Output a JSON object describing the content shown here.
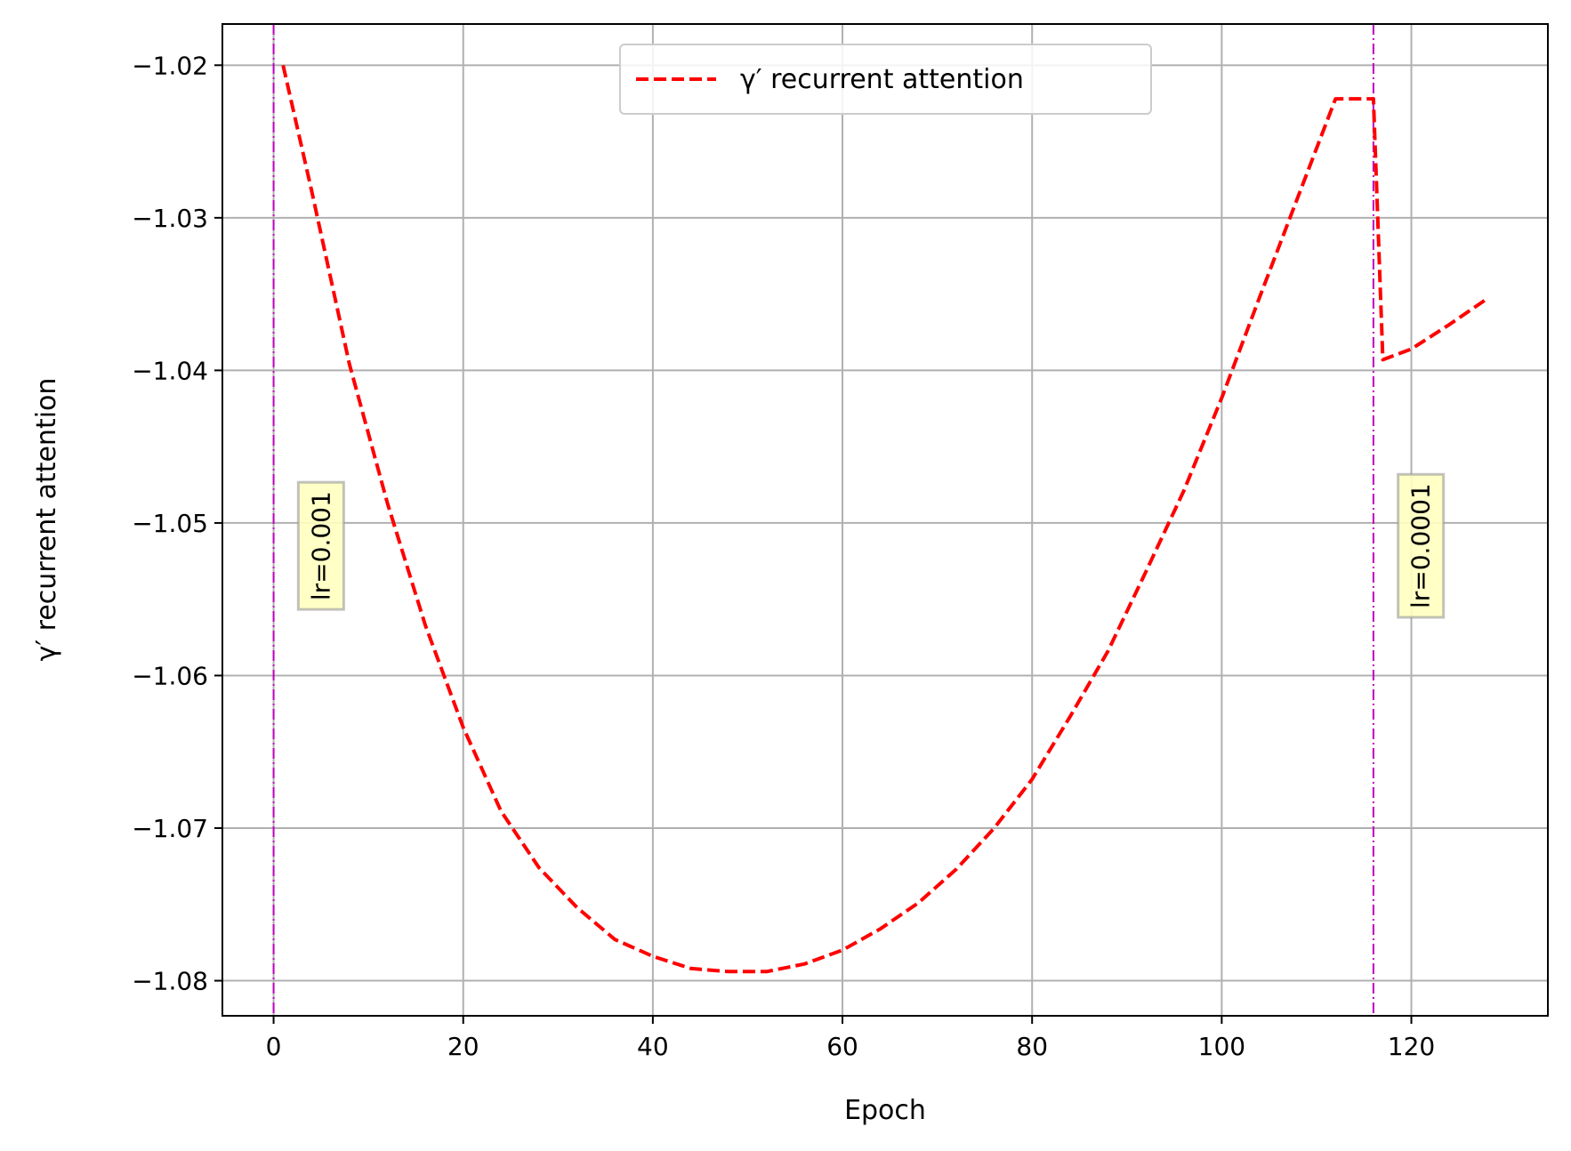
{
  "chart_data": {
    "type": "line",
    "title": "",
    "xlabel": "Epoch",
    "ylabel": "γ′ recurrent attention",
    "xlim": [
      -5.4,
      134.4
    ],
    "ylim": [
      -1.0823,
      -1.0173
    ],
    "xticks": [
      0,
      20,
      40,
      60,
      80,
      100,
      120
    ],
    "xtick_labels": [
      "0",
      "20",
      "40",
      "60",
      "80",
      "100",
      "120"
    ],
    "yticks": [
      -1.02,
      -1.03,
      -1.04,
      -1.05,
      -1.06,
      -1.07,
      -1.08
    ],
    "ytick_labels": [
      "−1.02",
      "−1.03",
      "−1.04",
      "−1.05",
      "−1.06",
      "−1.07",
      "−1.08"
    ],
    "grid": true,
    "legend_position": "top-center",
    "colors": {
      "series": "#ff0000",
      "vline": "#bf00bf",
      "grid": "#b0b0b0",
      "annotation_box": "#ffffc0"
    },
    "series": [
      {
        "name": "γ′ recurrent attention",
        "style": "dashed",
        "x": [
          1,
          4,
          8,
          12,
          16,
          20,
          24,
          28,
          32,
          36,
          40,
          44,
          48,
          52,
          56,
          60,
          64,
          68,
          72,
          76,
          80,
          84,
          88,
          92,
          96,
          100,
          104,
          108,
          112,
          116,
          117,
          120,
          124,
          128
        ],
        "y": [
          -1.02,
          -1.0282,
          -1.0396,
          -1.0487,
          -1.0567,
          -1.0634,
          -1.0689,
          -1.0726,
          -1.0752,
          -1.0773,
          -1.0784,
          -1.0792,
          -1.0794,
          -1.0794,
          -1.0789,
          -1.078,
          -1.0766,
          -1.0749,
          -1.0727,
          -1.07,
          -1.0668,
          -1.0627,
          -1.0584,
          -1.0532,
          -1.0479,
          -1.0418,
          -1.0352,
          -1.0287,
          -1.0222,
          -1.0222,
          -1.0393,
          -1.0386,
          -1.037,
          -1.0353
        ]
      }
    ],
    "vlines": [
      {
        "x": 0,
        "label": "lr=0.001",
        "label_x": 5,
        "label_y": -1.0515
      },
      {
        "x": 116,
        "label": "lr=0.0001",
        "label_x": 121,
        "label_y": -1.0515
      }
    ]
  }
}
